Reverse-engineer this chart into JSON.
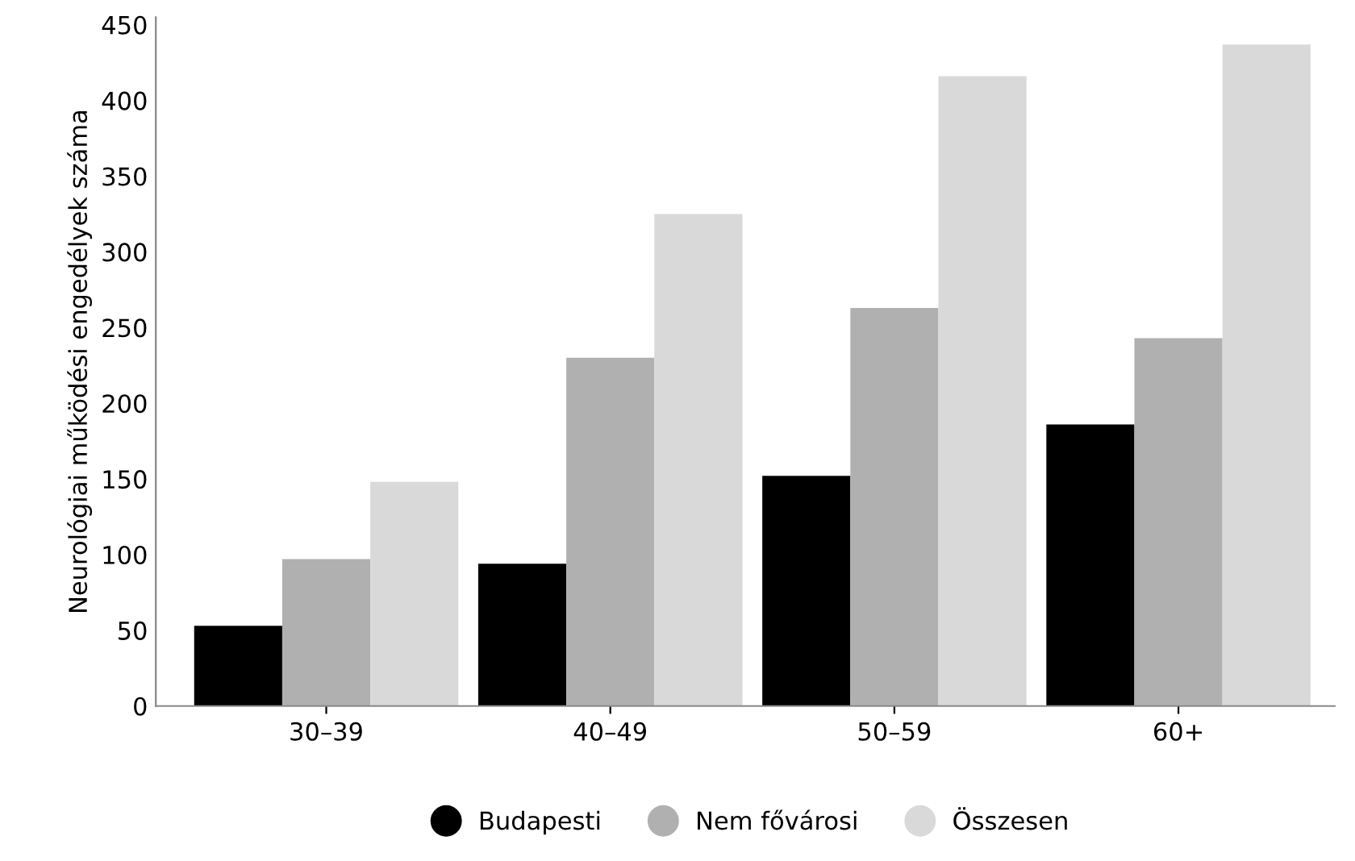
{
  "chart_data": {
    "type": "bar",
    "ylabel": "Neurológiai működési engedélyek száma",
    "categories": [
      "30–39",
      "40–49",
      "50–59",
      "60+"
    ],
    "series": [
      {
        "name": "Budapesti",
        "color": "#000000",
        "values": [
          53,
          94,
          152,
          186
        ]
      },
      {
        "name": "Nem fővárosi",
        "color": "#b0b0b0",
        "values": [
          97,
          230,
          263,
          243
        ]
      },
      {
        "name": "Összesen",
        "color": "#d9d9d9",
        "values": [
          148,
          325,
          416,
          437
        ]
      }
    ],
    "ylim": [
      0,
      455
    ],
    "yticks": [
      0,
      50,
      100,
      150,
      200,
      250,
      300,
      350,
      400,
      450
    ],
    "grid": false,
    "legend": "bottom"
  }
}
